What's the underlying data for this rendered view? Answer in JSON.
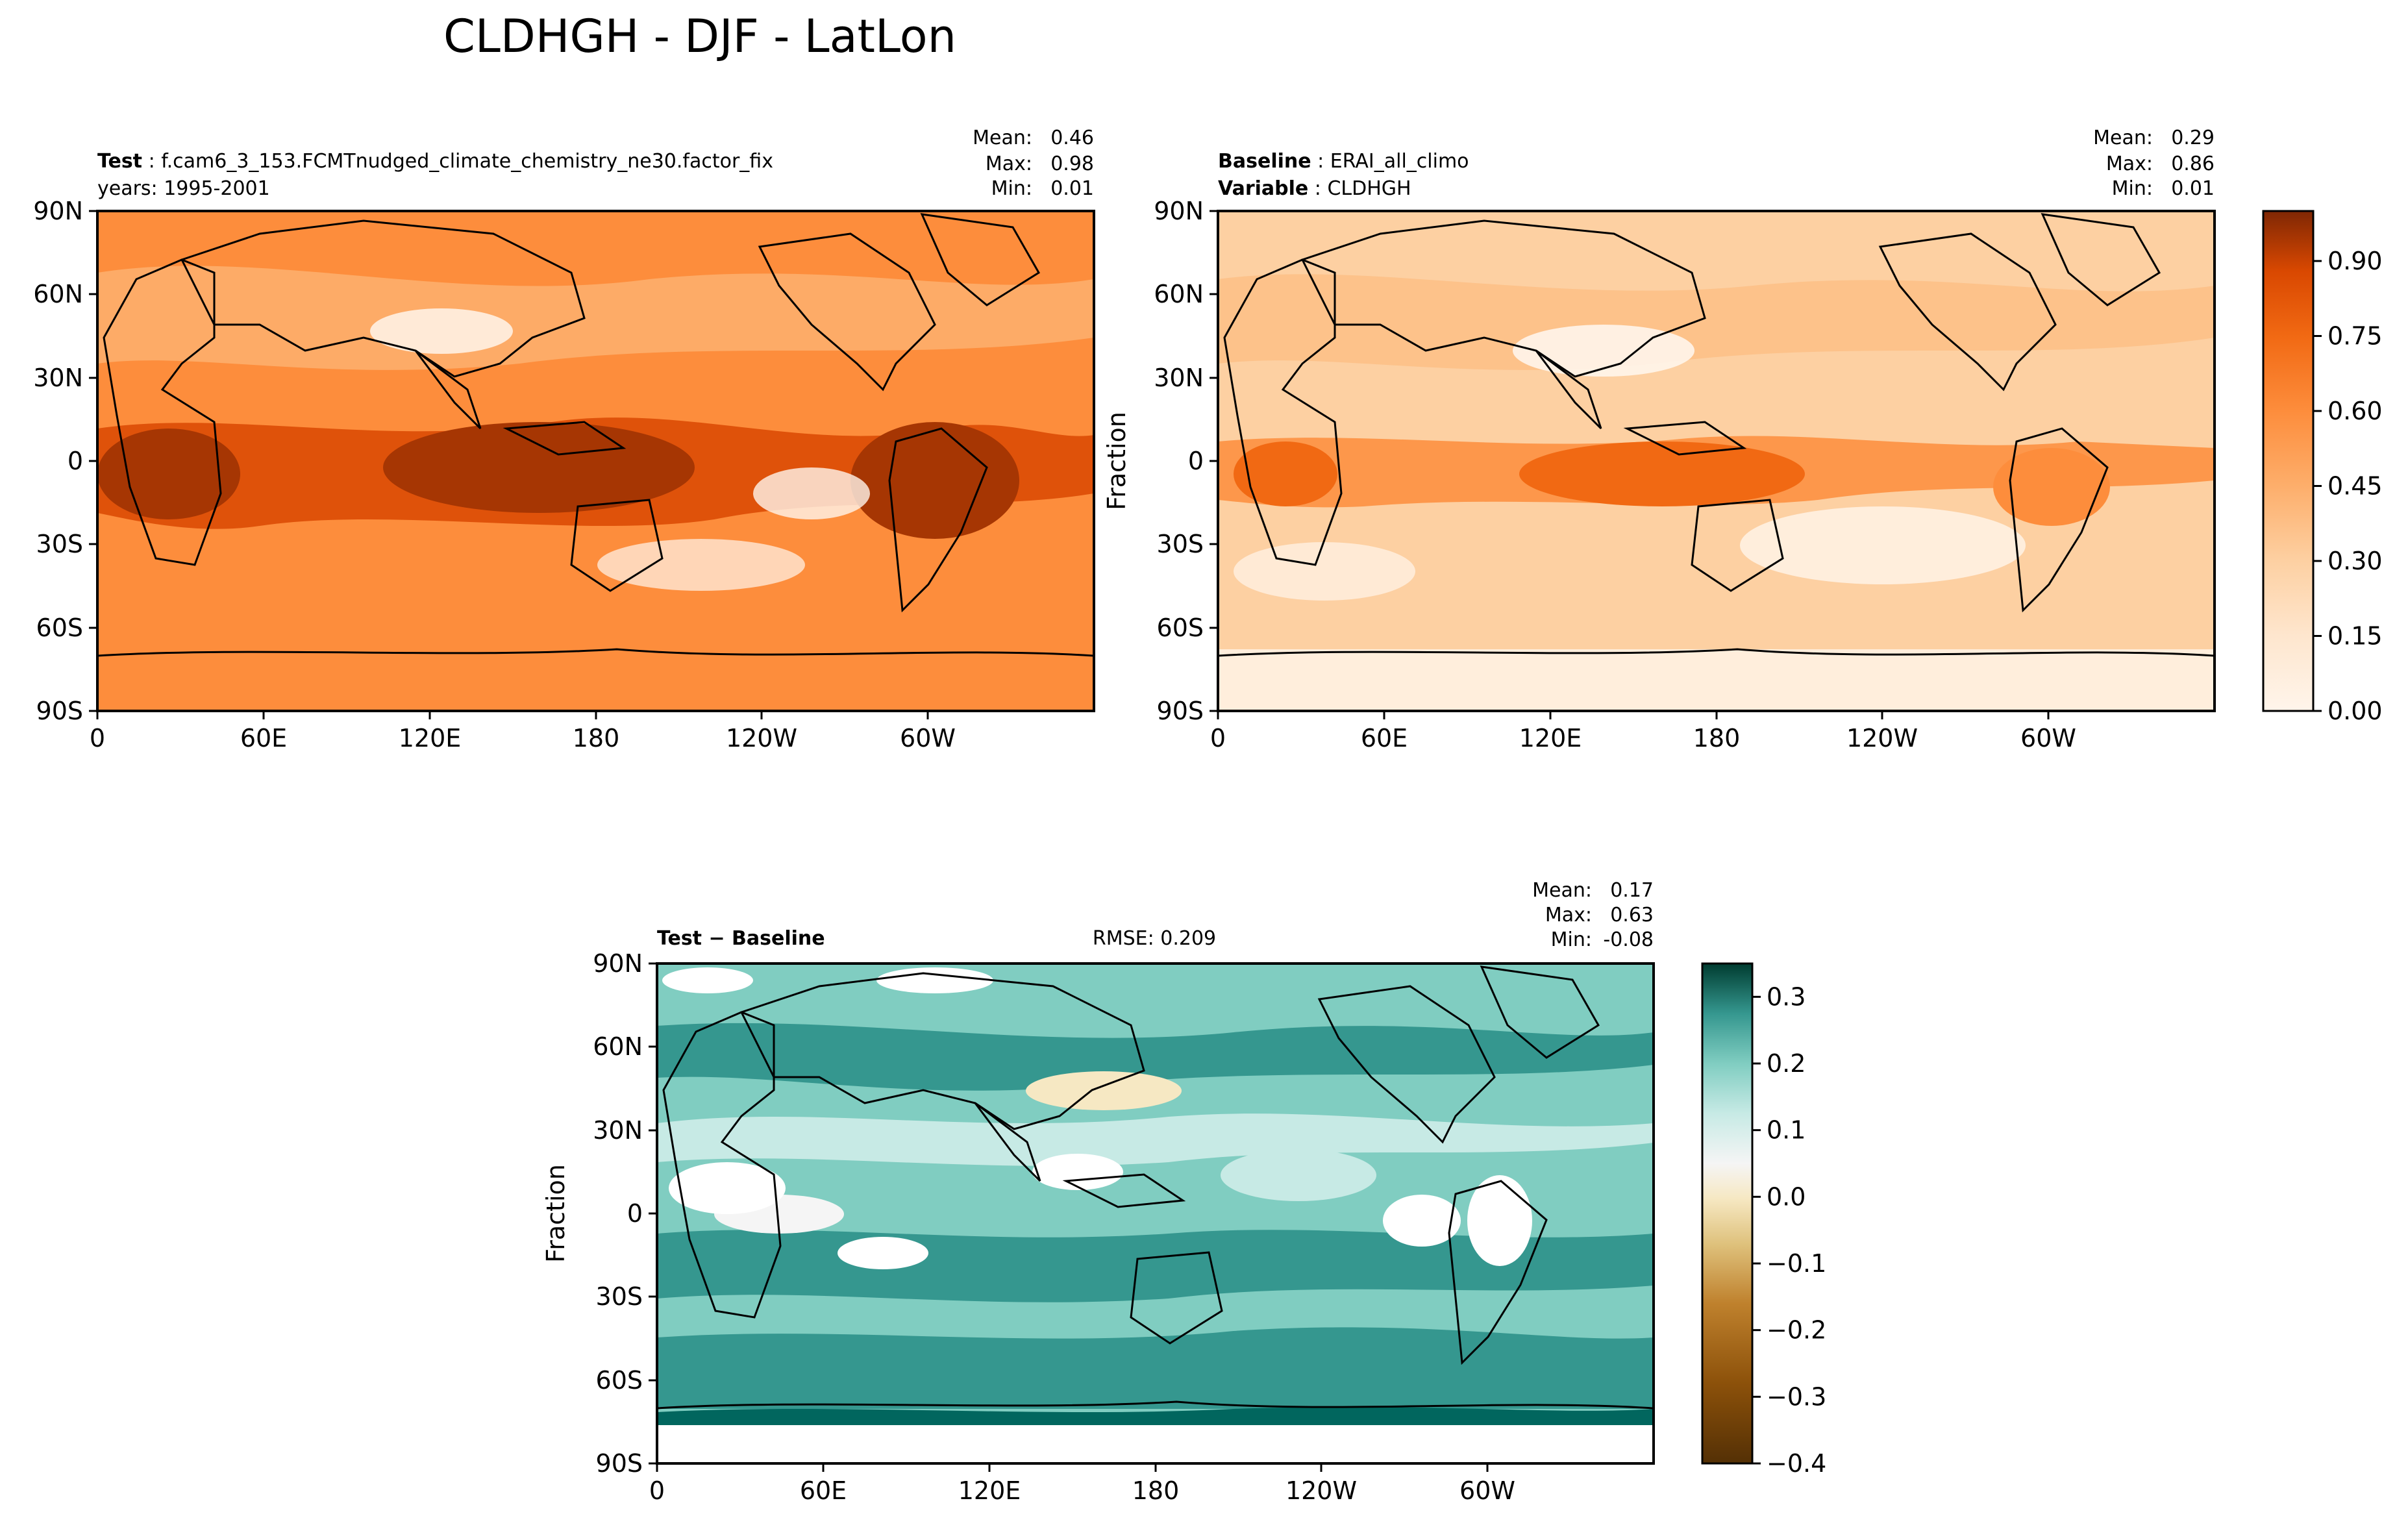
{
  "figure_title": "CLDHGH - DJF - LatLon",
  "chart_data": [
    {
      "type": "heatmap",
      "panel": "test",
      "header_label": "Test",
      "header_value": "f.cam6_3_153.FCMTnudged_climate_chemistry_ne30.factor_fix",
      "header_line2": "years: 1995-2001",
      "stats": {
        "mean_label": "Mean:",
        "mean": "0.46",
        "max_label": "Max:",
        "max": "0.98",
        "min_label": "Min:",
        "min": "0.01"
      },
      "ylabel": "",
      "x_ticks": [
        "0",
        "60E",
        "120E",
        "180",
        "120W",
        "60W"
      ],
      "y_ticks": [
        "90N",
        "60N",
        "30N",
        "0",
        "30S",
        "60S",
        "90S"
      ],
      "value_range": [
        0.01,
        0.98
      ],
      "colormap": [
        "#fff5eb",
        "#fdd0a2",
        "#fdae6b",
        "#fd8d3c",
        "#f16913",
        "#d94801",
        "#a63603",
        "#7f2704"
      ],
      "field_mean": 0.46
    },
    {
      "type": "heatmap",
      "panel": "baseline",
      "header_label": "Baseline",
      "header_value": "ERAI_all_climo",
      "header_label2": "Variable",
      "header_value2": "CLDHGH",
      "stats": {
        "mean_label": "Mean:",
        "mean": "0.29",
        "max_label": "Max:",
        "max": "0.86",
        "min_label": "Min:",
        "min": "0.01"
      },
      "ylabel": "Fraction",
      "x_ticks": [
        "0",
        "60E",
        "120E",
        "180",
        "120W",
        "60W"
      ],
      "y_ticks": [
        "90N",
        "60N",
        "30N",
        "0",
        "30S",
        "60S",
        "90S"
      ],
      "value_range": [
        0.01,
        0.86
      ],
      "colorbar": {
        "range": [
          0.0,
          1.0
        ],
        "tick_labels": [
          "0.00",
          "0.15",
          "0.30",
          "0.45",
          "0.60",
          "0.75",
          "0.90"
        ],
        "tick_values": [
          0.0,
          0.15,
          0.3,
          0.45,
          0.6,
          0.75,
          0.9
        ]
      },
      "field_mean": 0.29
    },
    {
      "type": "heatmap",
      "panel": "difference",
      "header_label": "Test − Baseline",
      "rmse": "RMSE: 0.209",
      "stats": {
        "mean_label": "Mean:",
        "mean": "0.17",
        "max_label": "Max:",
        "max": "0.63",
        "min_label": "Min:",
        "min": "-0.08"
      },
      "ylabel": "Fraction",
      "x_ticks": [
        "0",
        "60E",
        "120E",
        "180",
        "120W",
        "60W"
      ],
      "y_ticks": [
        "90N",
        "60N",
        "30N",
        "0",
        "30S",
        "60S",
        "90S"
      ],
      "value_range": [
        -0.08,
        0.63
      ],
      "colorbar": {
        "range": [
          -0.4,
          0.35
        ],
        "tick_labels": [
          "0.3",
          "0.2",
          "0.1",
          "0.0",
          "−0.1",
          "−0.2",
          "−0.3",
          "−0.4"
        ],
        "tick_values": [
          0.3,
          0.2,
          0.1,
          0.0,
          -0.1,
          -0.2,
          -0.3,
          -0.4
        ]
      },
      "field_mean": 0.17
    }
  ]
}
